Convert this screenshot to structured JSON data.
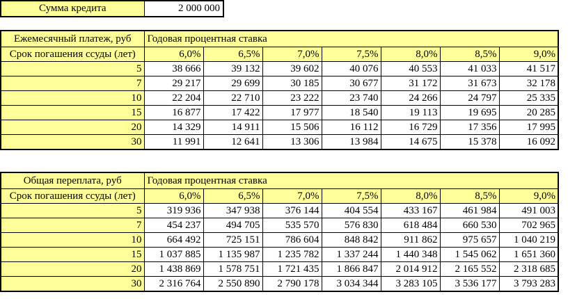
{
  "summary": {
    "label": "Сумма кредита",
    "value": "2 000 000"
  },
  "colors": {
    "header_fill": "#ffff99",
    "border": "#000000",
    "cell_fill": "#ffffff"
  },
  "monthly_table": {
    "title": "Ежемесячный платеж, руб",
    "rate_header": "Годовая процентная ставка",
    "term_header": "Срок погашения ссуды (лет)",
    "rates": [
      "6,0%",
      "6,5%",
      "7,0%",
      "7,5%",
      "8,0%",
      "8,5%",
      "9,0%"
    ],
    "rows": [
      {
        "term": "5",
        "values": [
          "38 666",
          "39 132",
          "39 602",
          "40 076",
          "40 553",
          "41 033",
          "41 517"
        ]
      },
      {
        "term": "7",
        "values": [
          "29 217",
          "29 699",
          "30 185",
          "30 677",
          "31 172",
          "31 673",
          "32 178"
        ]
      },
      {
        "term": "10",
        "values": [
          "22 204",
          "22 710",
          "23 222",
          "23 740",
          "24 266",
          "24 797",
          "25 335"
        ]
      },
      {
        "term": "15",
        "values": [
          "16 877",
          "17 422",
          "17 977",
          "18 540",
          "19 113",
          "19 695",
          "20 285"
        ]
      },
      {
        "term": "20",
        "values": [
          "14 329",
          "14 911",
          "15 506",
          "16 112",
          "16 729",
          "17 356",
          "17 995"
        ]
      },
      {
        "term": "30",
        "values": [
          "11 991",
          "12 641",
          "13 306",
          "13 984",
          "14 675",
          "15 378",
          "16 092"
        ]
      }
    ]
  },
  "overpay_table": {
    "title": "Общая переплата, руб",
    "rate_header": "Годовая процентная ставка",
    "term_header": "Срок погашения ссуды (лет)",
    "rates": [
      "6,0%",
      "6,5%",
      "7,0%",
      "7,5%",
      "8,0%",
      "8,5%",
      "9,0%"
    ],
    "rows": [
      {
        "term": "5",
        "values": [
          "319 936",
          "347 938",
          "376 144",
          "404 554",
          "433 167",
          "461 984",
          "491 003"
        ]
      },
      {
        "term": "7",
        "values": [
          "454 237",
          "494 705",
          "535 570",
          "576 830",
          "618 484",
          "660 530",
          "702 965"
        ]
      },
      {
        "term": "10",
        "values": [
          "664 492",
          "725 151",
          "786 604",
          "848 842",
          "911 862",
          "975 657",
          "1 040 219"
        ]
      },
      {
        "term": "15",
        "values": [
          "1 037 885",
          "1 135 987",
          "1 235 782",
          "1 337 244",
          "1 440 348",
          "1 545 062",
          "1 651 360"
        ]
      },
      {
        "term": "20",
        "values": [
          "1 438 869",
          "1 578 751",
          "1 721 435",
          "1 866 847",
          "2 014 912",
          "2 165 552",
          "2 318 685"
        ]
      },
      {
        "term": "30",
        "values": [
          "2 316 764",
          "2 550 890",
          "2 790 178",
          "3 034 344",
          "3 283 105",
          "3 536 177",
          "3 793 283"
        ]
      }
    ]
  }
}
